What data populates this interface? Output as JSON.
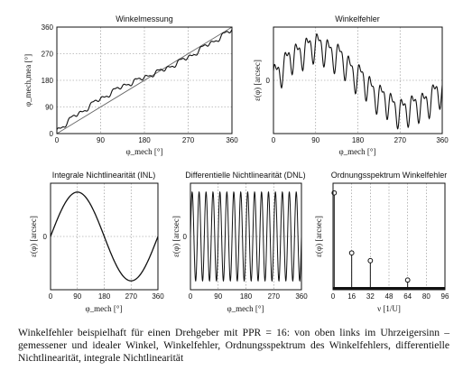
{
  "caption": "Winkelfehler beispielhaft für einen Drehgeber mit PPR = 16: von oben links im Uhrzeigersinn – gemessener und idealer Winkel, Winkelfehler, Ordnungsspektrum des Winkelfehlers, differentielle Nichtlinearität, integrale Nichtlinearität",
  "chart_data": [
    {
      "type": "line",
      "title": "Winkelmessung",
      "xlabel": "φ_mech [°]",
      "ylabel": "φ_mech,mea [°]",
      "xlim": [
        0,
        360
      ],
      "ylim": [
        0,
        360
      ],
      "xticks": [
        "0",
        "90",
        "180",
        "270",
        "360"
      ],
      "yticks": [
        "0",
        "90",
        "180",
        "270",
        "360"
      ],
      "grid": true,
      "series": [
        {
          "x": [
            0,
            360
          ],
          "y": [
            0,
            360
          ]
        },
        {
          "x": [
            0,
            45,
            90,
            135,
            180,
            225,
            270,
            315,
            360
          ],
          "y": [
            12,
            68,
            118,
            160,
            190,
            220,
            258,
            305,
            350
          ]
        }
      ],
      "ripple_amplitude": 6,
      "ripple_periods": 16
    },
    {
      "type": "line",
      "title": "Winkelfehler",
      "xlabel": "φ_mech [°]",
      "ylabel": "ε(φ) [arcsec]",
      "xlim": [
        0,
        360
      ],
      "xticks": [
        "0",
        "90",
        "180",
        "270",
        "360"
      ],
      "yticks": [
        "0"
      ],
      "grid": true,
      "ylim": [
        -1.3,
        1.3
      ],
      "series": [
        {
          "x": [
            0,
            45,
            90,
            135,
            180,
            225,
            270,
            315,
            360
          ],
          "y": [
            0.1,
            0.6,
            0.85,
            0.6,
            0.1,
            -0.4,
            -0.75,
            -0.6,
            -0.25
          ]
        }
      ],
      "ripple_amplitude": 0.3,
      "ripple_periods": 16
    },
    {
      "type": "line",
      "title": "Integrale Nichtlinearität (INL)",
      "xlabel": "φ_mech [°]",
      "ylabel": "ε(φ) [arcsec]",
      "xlim": [
        0,
        360
      ],
      "ylim": [
        -1.2,
        1.2
      ],
      "xticks": [
        "0",
        "90",
        "180",
        "270",
        "360"
      ],
      "yticks": [
        "0"
      ],
      "grid": true,
      "series": [
        {
          "x": [
            0,
            45,
            90,
            135,
            180,
            225,
            270,
            315,
            360
          ],
          "y": [
            0,
            0.707,
            1,
            0.707,
            0,
            -0.707,
            -1,
            -0.707,
            0
          ]
        }
      ]
    },
    {
      "type": "line",
      "title": "Differentielle Nichtlinearität (DNL)",
      "xlabel": "φ_mech [°]",
      "ylabel": "ε(φ) [arcsec]",
      "xlim": [
        0,
        360
      ],
      "ylim": [
        -1.2,
        1.2
      ],
      "xticks": [
        "0",
        "90",
        "180",
        "270",
        "360"
      ],
      "yticks": [
        "0"
      ],
      "grid": true,
      "oscillation_amplitude": 1,
      "oscillation_periods": 16
    },
    {
      "type": "stem",
      "title": "Ordnungsspektrum Winkelfehler",
      "xlabel": "ν [1/U]",
      "ylabel": "ε(φ) [arcsec]",
      "xlim": [
        0,
        96
      ],
      "ylim": [
        0,
        1.1
      ],
      "xticks": [
        "0",
        "16",
        "32",
        "48",
        "64",
        "80",
        "96"
      ],
      "grid": true,
      "x": [
        1,
        16,
        32,
        64
      ],
      "y": [
        1.0,
        0.38,
        0.3,
        0.1
      ]
    }
  ]
}
